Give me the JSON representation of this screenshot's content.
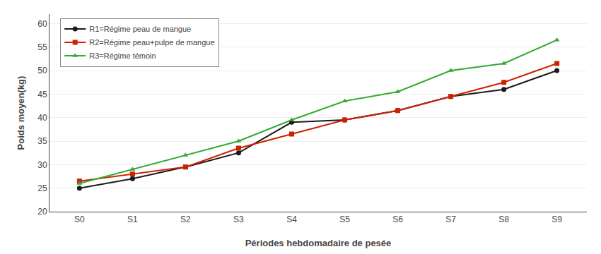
{
  "chart_data": {
    "type": "line",
    "xlabel": "Périodes hebdomadaire de pesée",
    "ylabel": "Poids moyen(kg)",
    "categories": [
      "S0",
      "S1",
      "S2",
      "S3",
      "S4",
      "S5",
      "S6",
      "S7",
      "S8",
      "S9"
    ],
    "series": [
      {
        "name": "R1=Régime peau de mangue",
        "color": "#1a1a1a",
        "marker": "circle",
        "values": [
          25.0,
          27.0,
          29.5,
          32.5,
          39.0,
          39.5,
          41.5,
          44.5,
          46.0,
          50.0
        ]
      },
      {
        "name": "R2=Régime peau+pulpe de mangue",
        "color": "#cc2200",
        "marker": "square",
        "values": [
          26.5,
          28.0,
          29.5,
          33.5,
          36.5,
          39.5,
          41.5,
          44.5,
          47.5,
          51.5
        ]
      },
      {
        "name": "R3=Régime témoin",
        "color": "#33aa33",
        "marker": "triangle-up",
        "values": [
          26.0,
          29.0,
          32.0,
          35.0,
          39.5,
          43.5,
          45.5,
          50.0,
          51.5,
          56.5
        ]
      }
    ],
    "ylim": [
      20,
      62
    ],
    "yticks": [
      20,
      25,
      30,
      35,
      40,
      45,
      50,
      55,
      60
    ],
    "grid": true,
    "legend": "upper left"
  }
}
